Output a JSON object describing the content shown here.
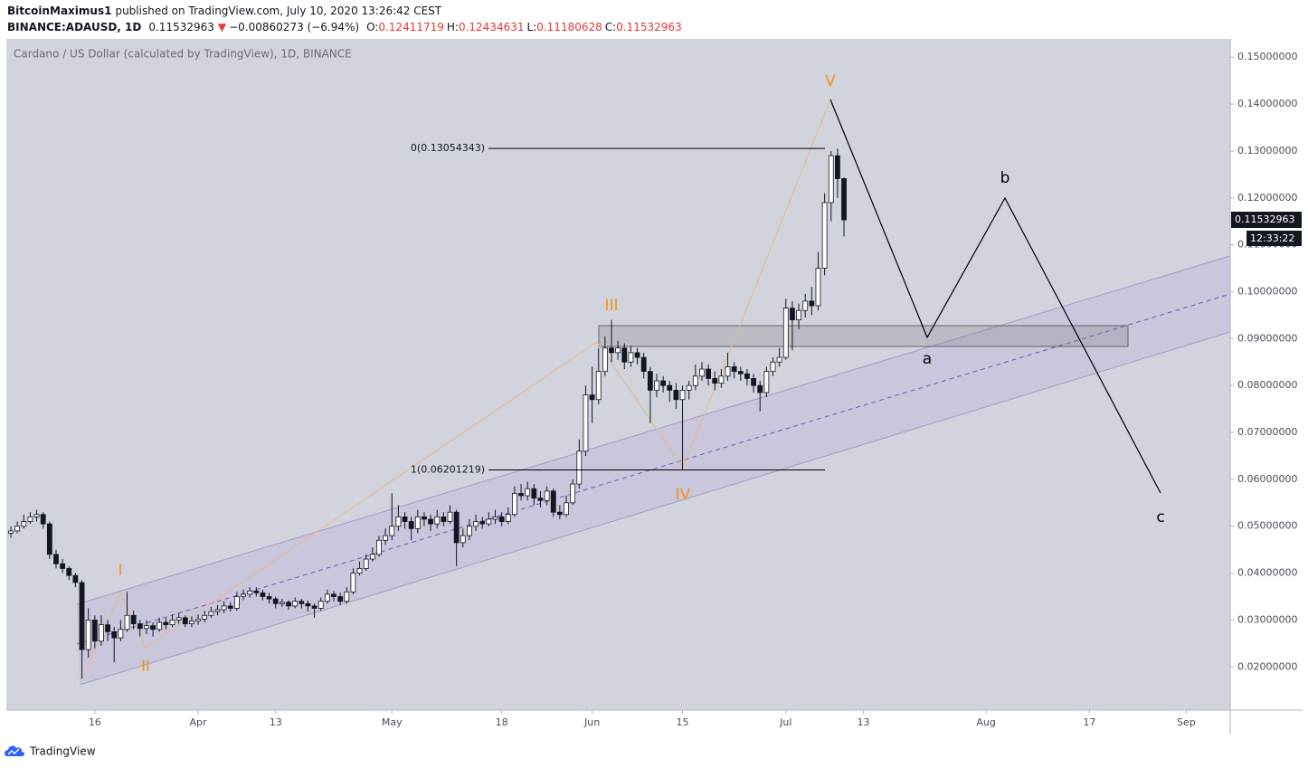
{
  "header": {
    "author": "BitcoinMaximus1",
    "published": "published on TradingView.com, July 10, 2020 13:26:42 CEST",
    "symbol": "BINANCE:ADAUSD, 1D",
    "last": "0.11532963",
    "change_arrow": "▼",
    "change": "−0.00860273 (−6.94%)",
    "ohlc": [
      {
        "label": "O:",
        "value": "0.12411719"
      },
      {
        "label": "H:",
        "value": "0.12434631"
      },
      {
        "label": "L:",
        "value": "0.11180628"
      },
      {
        "label": "C:",
        "value": "0.11532963"
      }
    ]
  },
  "chart_data": {
    "type": "candlestick",
    "title": "Cardano / US Dollar (calculated by TradingView), 1D, BINANCE",
    "up_color": "#ffffff",
    "down_color": "#131722",
    "wick_color": "#131722",
    "xlim": [
      -0.7,
      188.8
    ],
    "ylim": [
      0.0108,
      0.1539
    ],
    "xticks": [
      {
        "value": 13,
        "label": "16"
      },
      {
        "value": 29,
        "label": "Apr"
      },
      {
        "value": 41,
        "label": "13"
      },
      {
        "value": 59,
        "label": "May"
      },
      {
        "value": 76,
        "label": "18"
      },
      {
        "value": 90,
        "label": "Jun"
      },
      {
        "value": 104,
        "label": "15"
      },
      {
        "value": 120,
        "label": "Jul"
      },
      {
        "value": 132,
        "label": "13"
      },
      {
        "value": 151,
        "label": "Aug"
      },
      {
        "value": 167,
        "label": "17"
      },
      {
        "value": 182,
        "label": "Sep"
      }
    ],
    "yticks": [
      {
        "value": 0.02,
        "label": "0.02000000"
      },
      {
        "value": 0.03,
        "label": "0.03000000"
      },
      {
        "value": 0.04,
        "label": "0.04000000"
      },
      {
        "value": 0.05,
        "label": "0.05000000"
      },
      {
        "value": 0.06,
        "label": "0.06000000"
      },
      {
        "value": 0.07,
        "label": "0.07000000"
      },
      {
        "value": 0.08,
        "label": "0.08000000"
      },
      {
        "value": 0.09,
        "label": "0.09000000"
      },
      {
        "value": 0.1,
        "label": "0.10000000"
      },
      {
        "value": 0.11,
        "label": "0.11000000"
      },
      {
        "value": 0.12,
        "label": "0.12000000"
      },
      {
        "value": 0.13,
        "label": "0.13000000"
      },
      {
        "value": 0.14,
        "label": "0.14000000"
      },
      {
        "value": 0.15,
        "label": "0.15000000"
      }
    ],
    "open": [
      0.0485,
      0.049,
      0.05,
      0.051,
      0.052,
      0.0525,
      0.0505,
      0.044,
      0.042,
      0.041,
      0.0395,
      0.038,
      0.0237,
      0.03,
      0.0255,
      0.029,
      0.0275,
      0.0262,
      0.028,
      0.031,
      0.0292,
      0.0282,
      0.0288,
      0.028,
      0.0295,
      0.029,
      0.03,
      0.0305,
      0.0292,
      0.0298,
      0.0302,
      0.031,
      0.0318,
      0.0322,
      0.033,
      0.0325,
      0.035,
      0.0355,
      0.0362,
      0.0358,
      0.035,
      0.0345,
      0.0335,
      0.0338,
      0.033,
      0.034,
      0.0335,
      0.033,
      0.0325,
      0.034,
      0.0355,
      0.035,
      0.034,
      0.036,
      0.04,
      0.041,
      0.043,
      0.044,
      0.047,
      0.048,
      0.05,
      0.052,
      0.051,
      0.0495,
      0.052,
      0.0515,
      0.0505,
      0.052,
      0.051,
      0.053,
      0.0465,
      0.048,
      0.05,
      0.051,
      0.0505,
      0.0515,
      0.052,
      0.051,
      0.0525,
      0.057,
      0.0565,
      0.058,
      0.056,
      0.0555,
      0.0575,
      0.053,
      0.0525,
      0.055,
      0.059,
      0.066,
      0.078,
      0.077,
      0.083,
      0.088,
      0.087,
      0.088,
      0.085,
      0.087,
      0.086,
      0.083,
      0.079,
      0.081,
      0.08,
      0.079,
      0.077,
      0.079,
      0.08,
      0.082,
      0.0835,
      0.0815,
      0.0805,
      0.082,
      0.084,
      0.083,
      0.0825,
      0.0815,
      0.08,
      0.0785,
      0.083,
      0.085,
      0.086,
      0.0965,
      0.094,
      0.096,
      0.098,
      0.097,
      0.105,
      0.119,
      0.129,
      0.12411719
    ],
    "high": [
      0.05,
      0.051,
      0.0525,
      0.053,
      0.0535,
      0.053,
      0.051,
      0.045,
      0.043,
      0.0415,
      0.04,
      0.0385,
      0.0325,
      0.031,
      0.031,
      0.03,
      0.0285,
      0.03,
      0.036,
      0.032,
      0.03,
      0.03,
      0.0295,
      0.0305,
      0.0305,
      0.0312,
      0.0315,
      0.031,
      0.0308,
      0.0312,
      0.032,
      0.0328,
      0.0332,
      0.034,
      0.0338,
      0.036,
      0.0365,
      0.037,
      0.037,
      0.0365,
      0.0358,
      0.035,
      0.0345,
      0.0342,
      0.0348,
      0.0345,
      0.0342,
      0.0335,
      0.0348,
      0.0365,
      0.0362,
      0.0358,
      0.037,
      0.041,
      0.0425,
      0.044,
      0.0455,
      0.048,
      0.0495,
      0.057,
      0.0545,
      0.053,
      0.052,
      0.0535,
      0.053,
      0.0525,
      0.0535,
      0.053,
      0.0545,
      0.0535,
      0.0495,
      0.0515,
      0.0525,
      0.052,
      0.053,
      0.0535,
      0.053,
      0.054,
      0.0585,
      0.059,
      0.0595,
      0.059,
      0.0575,
      0.0585,
      0.058,
      0.0545,
      0.0565,
      0.06,
      0.0685,
      0.08,
      0.084,
      0.088,
      0.0905,
      0.094,
      0.0895,
      0.089,
      0.0885,
      0.088,
      0.087,
      0.084,
      0.0825,
      0.082,
      0.081,
      0.0805,
      0.08,
      0.081,
      0.0845,
      0.085,
      0.0845,
      0.083,
      0.0835,
      0.087,
      0.085,
      0.084,
      0.0835,
      0.0825,
      0.081,
      0.084,
      0.086,
      0.088,
      0.0985,
      0.098,
      0.0975,
      0.0995,
      0.101,
      0.1085,
      0.121,
      0.13,
      0.1305,
      0.12434631
    ],
    "low": [
      0.0475,
      0.0485,
      0.0495,
      0.0505,
      0.051,
      0.0495,
      0.043,
      0.041,
      0.04,
      0.0385,
      0.037,
      0.0175,
      0.022,
      0.024,
      0.0245,
      0.0255,
      0.021,
      0.0255,
      0.0275,
      0.028,
      0.0265,
      0.027,
      0.0265,
      0.0275,
      0.028,
      0.0285,
      0.0292,
      0.0285,
      0.0285,
      0.029,
      0.0295,
      0.0305,
      0.031,
      0.0315,
      0.0318,
      0.032,
      0.0342,
      0.0348,
      0.035,
      0.0342,
      0.0335,
      0.0325,
      0.0328,
      0.0322,
      0.0325,
      0.0325,
      0.0318,
      0.0305,
      0.032,
      0.0335,
      0.034,
      0.0332,
      0.0335,
      0.0355,
      0.0395,
      0.0405,
      0.0425,
      0.0435,
      0.046,
      0.047,
      0.049,
      0.0495,
      0.047,
      0.0485,
      0.05,
      0.049,
      0.0495,
      0.05,
      0.0505,
      0.0415,
      0.0455,
      0.047,
      0.049,
      0.0495,
      0.05,
      0.0505,
      0.05,
      0.0505,
      0.052,
      0.0555,
      0.0555,
      0.0545,
      0.054,
      0.0545,
      0.052,
      0.0515,
      0.052,
      0.0545,
      0.058,
      0.065,
      0.072,
      0.076,
      0.082,
      0.085,
      0.0855,
      0.0835,
      0.084,
      0.0845,
      0.0815,
      0.072,
      0.0775,
      0.0785,
      0.0765,
      0.075,
      0.062,
      0.077,
      0.079,
      0.081,
      0.08,
      0.079,
      0.0795,
      0.081,
      0.0815,
      0.081,
      0.08,
      0.0785,
      0.0745,
      0.0775,
      0.082,
      0.084,
      0.0855,
      0.0875,
      0.092,
      0.0945,
      0.095,
      0.096,
      0.1035,
      0.115,
      0.12,
      0.11180628
    ],
    "close": [
      0.049,
      0.05,
      0.051,
      0.052,
      0.0525,
      0.0505,
      0.044,
      0.042,
      0.041,
      0.0395,
      0.038,
      0.0237,
      0.03,
      0.0255,
      0.029,
      0.0275,
      0.0262,
      0.028,
      0.031,
      0.0292,
      0.0282,
      0.0288,
      0.028,
      0.0295,
      0.029,
      0.03,
      0.0305,
      0.0292,
      0.0298,
      0.0302,
      0.031,
      0.0318,
      0.0322,
      0.033,
      0.0325,
      0.035,
      0.0355,
      0.0362,
      0.0358,
      0.035,
      0.0345,
      0.0335,
      0.0338,
      0.033,
      0.034,
      0.0335,
      0.033,
      0.0325,
      0.034,
      0.0355,
      0.035,
      0.034,
      0.036,
      0.04,
      0.041,
      0.043,
      0.044,
      0.047,
      0.048,
      0.05,
      0.052,
      0.051,
      0.0495,
      0.052,
      0.0515,
      0.0505,
      0.052,
      0.051,
      0.053,
      0.0465,
      0.048,
      0.05,
      0.051,
      0.0505,
      0.0515,
      0.052,
      0.051,
      0.0525,
      0.057,
      0.0565,
      0.058,
      0.056,
      0.0555,
      0.0575,
      0.053,
      0.0525,
      0.055,
      0.059,
      0.066,
      0.078,
      0.077,
      0.083,
      0.088,
      0.087,
      0.088,
      0.085,
      0.087,
      0.086,
      0.083,
      0.079,
      0.081,
      0.08,
      0.079,
      0.077,
      0.079,
      0.08,
      0.082,
      0.0835,
      0.0815,
      0.0805,
      0.082,
      0.084,
      0.083,
      0.0825,
      0.0815,
      0.08,
      0.0785,
      0.083,
      0.085,
      0.086,
      0.0965,
      0.094,
      0.096,
      0.098,
      0.097,
      0.105,
      0.119,
      0.129,
      0.1241,
      0.11532963
    ],
    "fib_levels": [
      {
        "price": 0.13054343,
        "label": "0(0.13054343)"
      },
      {
        "price": 0.06201219,
        "label": "1(0.06201219)"
      }
    ],
    "countdown": "12:33:22",
    "wave_labels": [
      "I",
      "II",
      "III",
      "IV",
      "V"
    ],
    "projection_labels": [
      "a",
      "b",
      "c"
    ]
  },
  "footer": {
    "brand": "TradingView"
  }
}
